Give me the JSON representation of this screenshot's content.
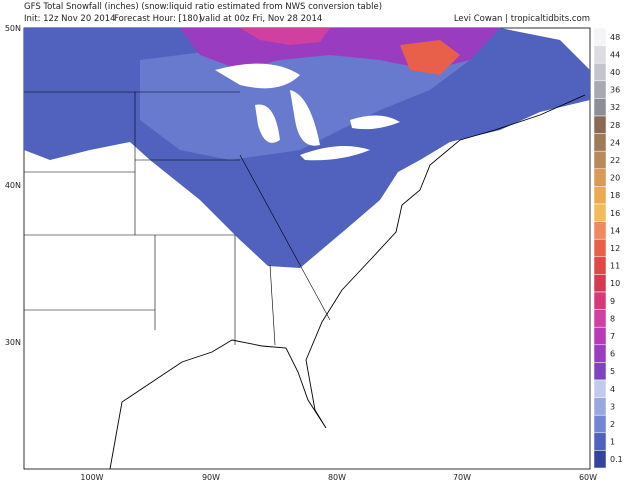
{
  "header": {
    "title": "GFS Total Snowfall (inches) (snow:liquid ratio estimated from NWS conversion table)",
    "init": "Init: 12z Nov 20 2014",
    "forecast_hour": "Forecast Hour: [180]",
    "valid": "valid at 00z Fri, Nov 28 2014",
    "credit": "Levi Cowan | tropicaltidbits.com"
  },
  "map": {
    "lat_labels": [
      "50N",
      "40N",
      "30N"
    ],
    "lon_labels": [
      "100W",
      "90W",
      "80W",
      "70W",
      "60W"
    ]
  },
  "colorbar": {
    "levels": [
      {
        "label": "48",
        "color": "#f4f4f6"
      },
      {
        "label": "44",
        "color": "#dcdce2"
      },
      {
        "label": "40",
        "color": "#c4c4cc"
      },
      {
        "label": "36",
        "color": "#a8a8b0"
      },
      {
        "label": "32",
        "color": "#8e8e96"
      },
      {
        "label": "28",
        "color": "#8a6a56"
      },
      {
        "label": "24",
        "color": "#9e7a58"
      },
      {
        "label": "22",
        "color": "#b88a5a"
      },
      {
        "label": "20",
        "color": "#d89a56"
      },
      {
        "label": "18",
        "color": "#eeaa50"
      },
      {
        "label": "16",
        "color": "#f4bb5a"
      },
      {
        "label": "14",
        "color": "#f08860"
      },
      {
        "label": "12",
        "color": "#e8604a"
      },
      {
        "label": "11",
        "color": "#e04848"
      },
      {
        "label": "10",
        "color": "#d63a50"
      },
      {
        "label": "9",
        "color": "#d83a78"
      },
      {
        "label": "8",
        "color": "#d040a0"
      },
      {
        "label": "7",
        "color": "#b83ab8"
      },
      {
        "label": "6",
        "color": "#9a3cc0"
      },
      {
        "label": "5",
        "color": "#7e44c0"
      },
      {
        "label": "4",
        "color": "#c2cbee"
      },
      {
        "label": "3",
        "color": "#9aa8e2"
      },
      {
        "label": "2",
        "color": "#7284d4"
      },
      {
        "label": "1",
        "color": "#5062be"
      },
      {
        "label": "0.1",
        "color": "#34439e"
      }
    ]
  }
}
